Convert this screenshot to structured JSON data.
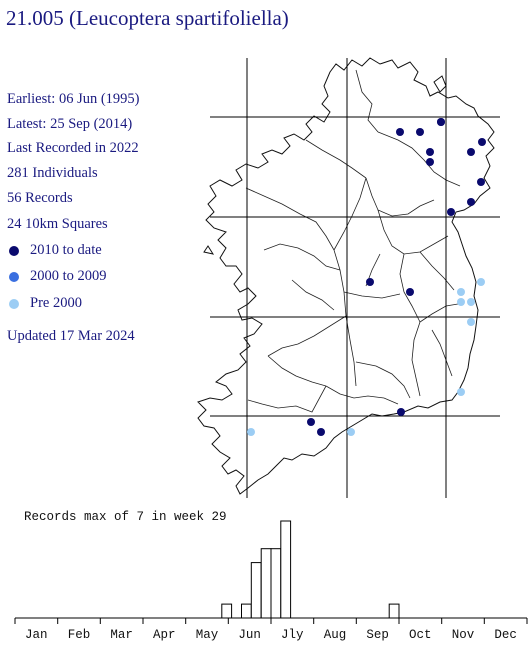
{
  "title": "21.005 (Leucoptera spartifoliella)",
  "stats": {
    "earliest": "Earliest: 06 Jun (1995)",
    "latest": "Latest: 25 Sep (2014)",
    "last_recorded": "Last Recorded in 2022",
    "individuals": "281 Individuals",
    "records": "56 Records",
    "squares": "24 10km Squares"
  },
  "legend": [
    {
      "label": "2010 to date",
      "color": "#0a0a6e"
    },
    {
      "label": "2000 to 2009",
      "color": "#3a6fe0"
    },
    {
      "label": "Pre 2000",
      "color": "#9ccdf4"
    }
  ],
  "updated": "Updated 17 Mar 2024",
  "map_records": [
    {
      "period": "2010 to date",
      "count": 16
    },
    {
      "period": "Pre 2000",
      "count": 8
    }
  ],
  "histogram": {
    "caption": "Records max of 7 in week 29",
    "max": 7,
    "months": [
      "Jan",
      "Feb",
      "Mar",
      "Apr",
      "May",
      "Jun",
      "Jly",
      "Aug",
      "Sep",
      "Oct",
      "Nov",
      "Dec"
    ],
    "weeks": [
      0,
      0,
      0,
      0,
      0,
      0,
      0,
      0,
      0,
      0,
      0,
      0,
      0,
      0,
      0,
      0,
      0,
      0,
      0,
      0,
      0,
      1,
      0,
      1,
      4,
      5,
      5,
      7,
      0,
      0,
      0,
      0,
      0,
      0,
      0,
      0,
      0,
      0,
      1,
      0,
      0,
      0,
      0,
      0,
      0,
      0,
      0,
      0,
      0,
      0,
      0,
      0
    ]
  }
}
